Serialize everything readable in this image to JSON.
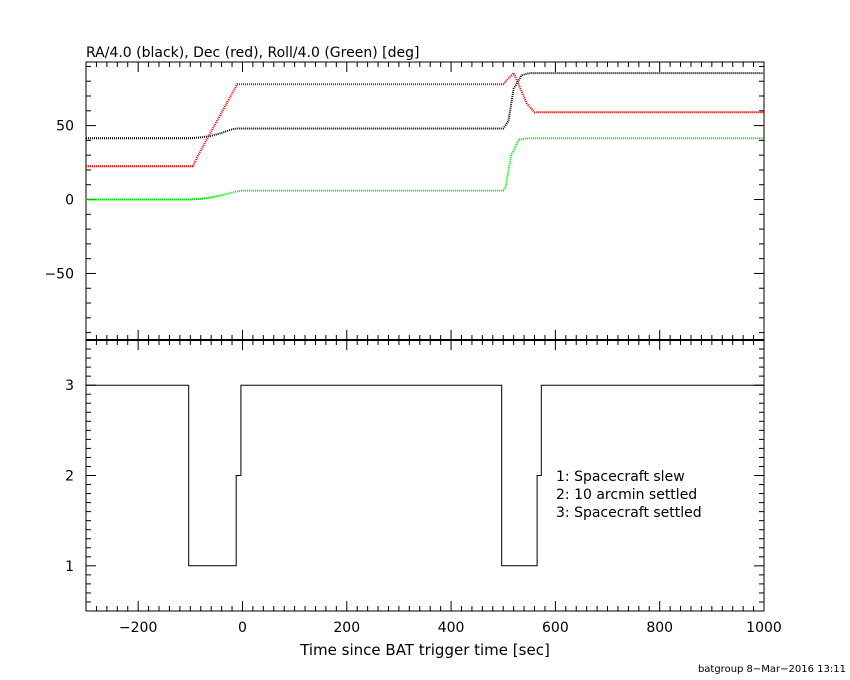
{
  "chart_data": [
    {
      "type": "line",
      "title": "RA/4.0 (black), Dec (red), Roll/4.0 (Green) [deg]",
      "xlim": [
        -300,
        1000
      ],
      "ylim": [
        -95,
        93
      ],
      "yticks": [
        -50,
        0,
        50
      ],
      "ytick_labels": [
        "−50",
        "0",
        "50"
      ],
      "grid": false,
      "series": [
        {
          "name": "RA/4.0",
          "color": "#000000",
          "x": [
            -300,
            -100,
            -80,
            -60,
            -40,
            -20,
            -10,
            0,
            500,
            510,
            520,
            535,
            550,
            1000
          ],
          "y": [
            41.5,
            41.5,
            42,
            43,
            45,
            47.5,
            48,
            48,
            48,
            53,
            75,
            84,
            85.5,
            85.5
          ]
        },
        {
          "name": "Dec",
          "color": "#e00000",
          "x": [
            -300,
            -95,
            -85,
            -10,
            0,
            500,
            510,
            520,
            545,
            560,
            1000
          ],
          "y": [
            22.5,
            22.5,
            30,
            78,
            78,
            78,
            82,
            85.5,
            65,
            59,
            59
          ]
        },
        {
          "name": "Roll/4.0",
          "color": "#00e000",
          "x": [
            -300,
            -100,
            -80,
            -60,
            -40,
            -10,
            0,
            500,
            505,
            515,
            530,
            550,
            1000
          ],
          "y": [
            0,
            0,
            0.5,
            1.5,
            3,
            5.5,
            6,
            6,
            9,
            30,
            40.5,
            41.5,
            41.5
          ]
        }
      ]
    },
    {
      "type": "line",
      "xlabel": "Time since BAT trigger time [sec]",
      "xlim": [
        -300,
        1000
      ],
      "ylim": [
        0.5,
        3.5
      ],
      "xticks": [
        -200,
        0,
        200,
        400,
        600,
        800,
        1000
      ],
      "xtick_labels": [
        "−200",
        "0",
        "200",
        "400",
        "600",
        "800",
        "1000"
      ],
      "yticks": [
        1,
        2,
        3
      ],
      "ytick_labels": [
        "1",
        "2",
        "3"
      ],
      "grid": false,
      "series": [
        {
          "color": "#000000",
          "x": [
            -300,
            -103,
            -103,
            -12,
            -12,
            -3,
            -3,
            497,
            497,
            565,
            565,
            573,
            573,
            1000
          ],
          "y": [
            3,
            3,
            1,
            1,
            2,
            2,
            3,
            3,
            1,
            1,
            2,
            2,
            3,
            3
          ]
        }
      ],
      "annotations": [
        "1: Spacecraft slew",
        "2: 10 arcmin settled",
        "3: Spacecraft settled"
      ]
    }
  ],
  "footer": "batgroup  8−Mar−2016 13:11"
}
